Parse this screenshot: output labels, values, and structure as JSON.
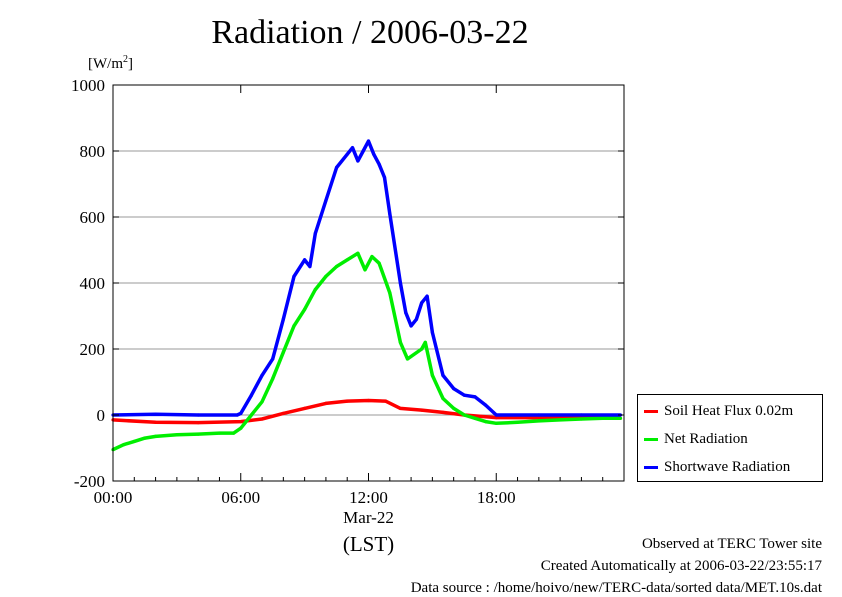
{
  "chart_data": {
    "type": "line",
    "title": "Radiation / 2006-03-22",
    "ylabel": "[W/m²]",
    "xlabel": "(LST)",
    "x_date_label": "Mar-22",
    "ylim": [
      -200,
      1000
    ],
    "yticks": [
      -200,
      0,
      200,
      400,
      600,
      800,
      1000
    ],
    "xticks": [
      "00:00",
      "06:00",
      "12:00",
      "18:00"
    ],
    "xlim": [
      "00:00",
      "24:00"
    ],
    "grid": true,
    "legend_position": "right",
    "series": [
      {
        "name": "Soil Heat Flux 0.02m",
        "color": "#ff0000",
        "points": [
          [
            "00:00",
            -15
          ],
          [
            "02:00",
            -22
          ],
          [
            "04:00",
            -23
          ],
          [
            "06:00",
            -20
          ],
          [
            "07:00",
            -12
          ],
          [
            "08:00",
            5
          ],
          [
            "09:00",
            20
          ],
          [
            "10:00",
            35
          ],
          [
            "11:00",
            42
          ],
          [
            "12:00",
            44
          ],
          [
            "12:48",
            42
          ],
          [
            "13:30",
            20
          ],
          [
            "14:30",
            15
          ],
          [
            "15:30",
            8
          ],
          [
            "16:30",
            0
          ],
          [
            "18:00",
            -8
          ],
          [
            "20:00",
            -8
          ],
          [
            "22:00",
            -10
          ],
          [
            "23:50",
            -10
          ]
        ]
      },
      {
        "name": "Net Radiation",
        "color": "#00ee00",
        "points": [
          [
            "00:00",
            -105
          ],
          [
            "00:30",
            -90
          ],
          [
            "01:00",
            -80
          ],
          [
            "01:30",
            -70
          ],
          [
            "02:00",
            -65
          ],
          [
            "03:00",
            -60
          ],
          [
            "04:00",
            -58
          ],
          [
            "05:00",
            -55
          ],
          [
            "05:40",
            -55
          ],
          [
            "06:00",
            -40
          ],
          [
            "06:30",
            0
          ],
          [
            "07:00",
            40
          ],
          [
            "07:30",
            110
          ],
          [
            "08:00",
            190
          ],
          [
            "08:30",
            270
          ],
          [
            "09:00",
            320
          ],
          [
            "09:30",
            380
          ],
          [
            "10:00",
            420
          ],
          [
            "10:30",
            450
          ],
          [
            "11:00",
            470
          ],
          [
            "11:30",
            490
          ],
          [
            "11:50",
            440
          ],
          [
            "12:10",
            480
          ],
          [
            "12:30",
            460
          ],
          [
            "13:00",
            370
          ],
          [
            "13:30",
            220
          ],
          [
            "13:50",
            170
          ],
          [
            "14:30",
            200
          ],
          [
            "14:40",
            220
          ],
          [
            "15:00",
            120
          ],
          [
            "15:30",
            50
          ],
          [
            "16:00",
            20
          ],
          [
            "16:30",
            0
          ],
          [
            "17:00",
            -10
          ],
          [
            "17:30",
            -20
          ],
          [
            "18:00",
            -25
          ],
          [
            "19:00",
            -22
          ],
          [
            "20:00",
            -18
          ],
          [
            "21:00",
            -15
          ],
          [
            "22:00",
            -12
          ],
          [
            "23:00",
            -10
          ],
          [
            "23:50",
            -10
          ]
        ]
      },
      {
        "name": "Shortwave Radiation",
        "color": "#0000ff",
        "points": [
          [
            "00:00",
            0
          ],
          [
            "02:00",
            2
          ],
          [
            "04:00",
            0
          ],
          [
            "05:50",
            0
          ],
          [
            "06:00",
            5
          ],
          [
            "06:30",
            60
          ],
          [
            "07:00",
            120
          ],
          [
            "07:30",
            170
          ],
          [
            "08:00",
            290
          ],
          [
            "08:30",
            420
          ],
          [
            "09:00",
            470
          ],
          [
            "09:15",
            450
          ],
          [
            "09:30",
            550
          ],
          [
            "10:00",
            650
          ],
          [
            "10:30",
            750
          ],
          [
            "11:00",
            790
          ],
          [
            "11:15",
            810
          ],
          [
            "11:30",
            770
          ],
          [
            "11:45",
            800
          ],
          [
            "12:00",
            830
          ],
          [
            "12:15",
            790
          ],
          [
            "12:30",
            760
          ],
          [
            "12:45",
            720
          ],
          [
            "13:00",
            610
          ],
          [
            "13:30",
            400
          ],
          [
            "13:45",
            310
          ],
          [
            "14:00",
            270
          ],
          [
            "14:15",
            290
          ],
          [
            "14:30",
            340
          ],
          [
            "14:45",
            360
          ],
          [
            "15:00",
            250
          ],
          [
            "15:30",
            120
          ],
          [
            "16:00",
            80
          ],
          [
            "16:30",
            60
          ],
          [
            "17:00",
            55
          ],
          [
            "17:30",
            30
          ],
          [
            "18:00",
            0
          ],
          [
            "20:00",
            0
          ],
          [
            "22:00",
            0
          ],
          [
            "23:50",
            0
          ]
        ]
      }
    ]
  },
  "footer": {
    "line1": "Observed at TERC Tower site",
    "line2": "Created Automatically at 2006-03-22/23:55:17",
    "line3": "Data source : /home/hoivo/new/TERC-data/sorted  data/MET.10s.dat"
  }
}
